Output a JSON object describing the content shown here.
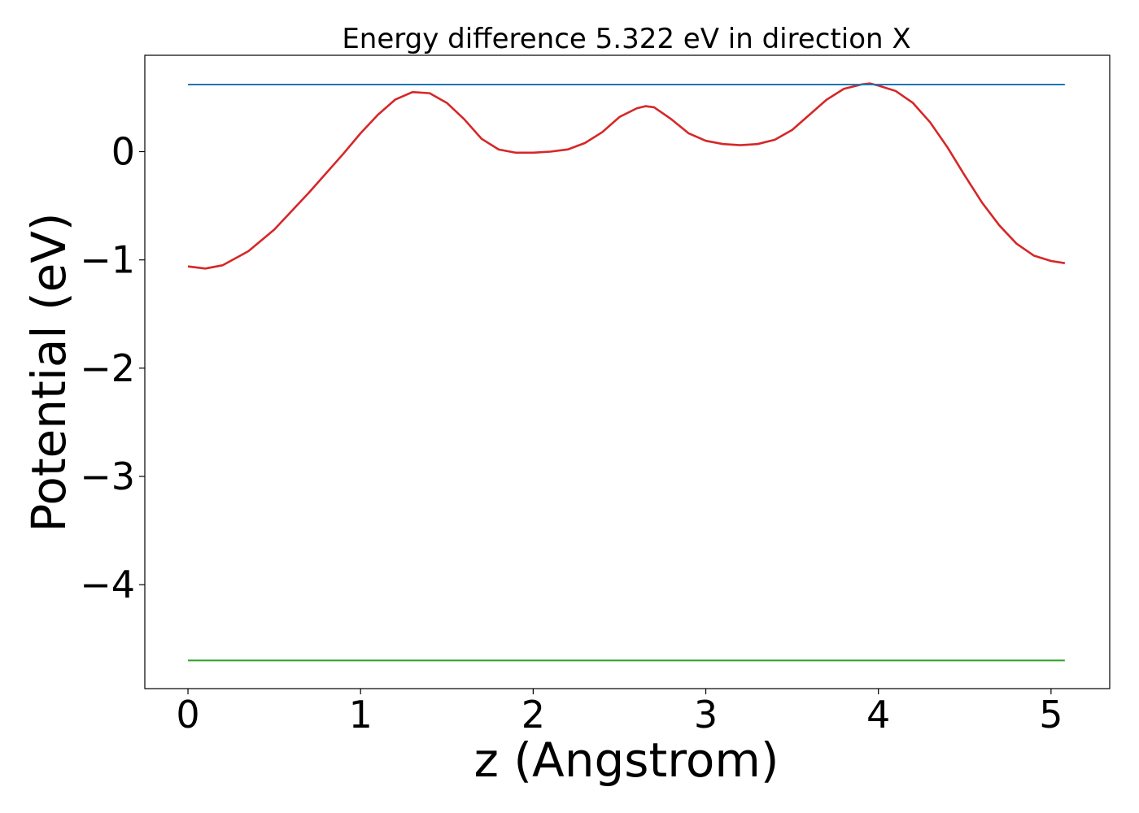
{
  "chart_data": {
    "type": "line",
    "title": "Energy difference 5.322 eV in direction X",
    "xlabel": "z (Angstrom)",
    "ylabel": "Potential (eV)",
    "xlim": [
      -0.25,
      5.34
    ],
    "ylim": [
      -4.96,
      0.89
    ],
    "xticks": [
      0,
      1,
      2,
      3,
      4,
      5
    ],
    "xtick_labels": [
      "0",
      "1",
      "2",
      "3",
      "4",
      "5"
    ],
    "yticks": [
      0,
      -1,
      -2,
      -3,
      -4
    ],
    "ytick_labels": [
      "0",
      "−1",
      "−2",
      "−3",
      "−4"
    ],
    "grid": false,
    "series": [
      {
        "color": "#d62728",
        "kind": "curve",
        "x": [
          0,
          0.1,
          0.2,
          0.35,
          0.5,
          0.7,
          0.9,
          1.0,
          1.1,
          1.2,
          1.3,
          1.4,
          1.5,
          1.6,
          1.7,
          1.8,
          1.9,
          2.0,
          2.1,
          2.2,
          2.3,
          2.4,
          2.5,
          2.6,
          2.65,
          2.7,
          2.8,
          2.9,
          3.0,
          3.1,
          3.2,
          3.3,
          3.4,
          3.5,
          3.6,
          3.7,
          3.8,
          3.9,
          3.95,
          4.0,
          4.1,
          4.2,
          4.3,
          4.4,
          4.5,
          4.6,
          4.7,
          4.8,
          4.9,
          5.0,
          5.08
        ],
        "y": [
          -1.06,
          -1.08,
          -1.05,
          -0.92,
          -0.72,
          -0.38,
          -0.02,
          0.17,
          0.34,
          0.48,
          0.55,
          0.54,
          0.45,
          0.3,
          0.12,
          0.02,
          -0.01,
          -0.01,
          0.0,
          0.02,
          0.08,
          0.18,
          0.32,
          0.4,
          0.42,
          0.41,
          0.3,
          0.17,
          0.1,
          0.07,
          0.06,
          0.07,
          0.11,
          0.2,
          0.34,
          0.48,
          0.58,
          0.62,
          0.63,
          0.61,
          0.56,
          0.45,
          0.27,
          0.04,
          -0.22,
          -0.47,
          -0.68,
          -0.85,
          -0.96,
          -1.01,
          -1.03
        ]
      },
      {
        "color": "#1f77b4",
        "kind": "hline",
        "x": [
          0,
          5.08
        ],
        "y": [
          0.62,
          0.62
        ]
      },
      {
        "color": "#2ca02c",
        "kind": "hline",
        "x": [
          0,
          5.08
        ],
        "y": [
          -4.7,
          -4.7
        ]
      }
    ]
  }
}
